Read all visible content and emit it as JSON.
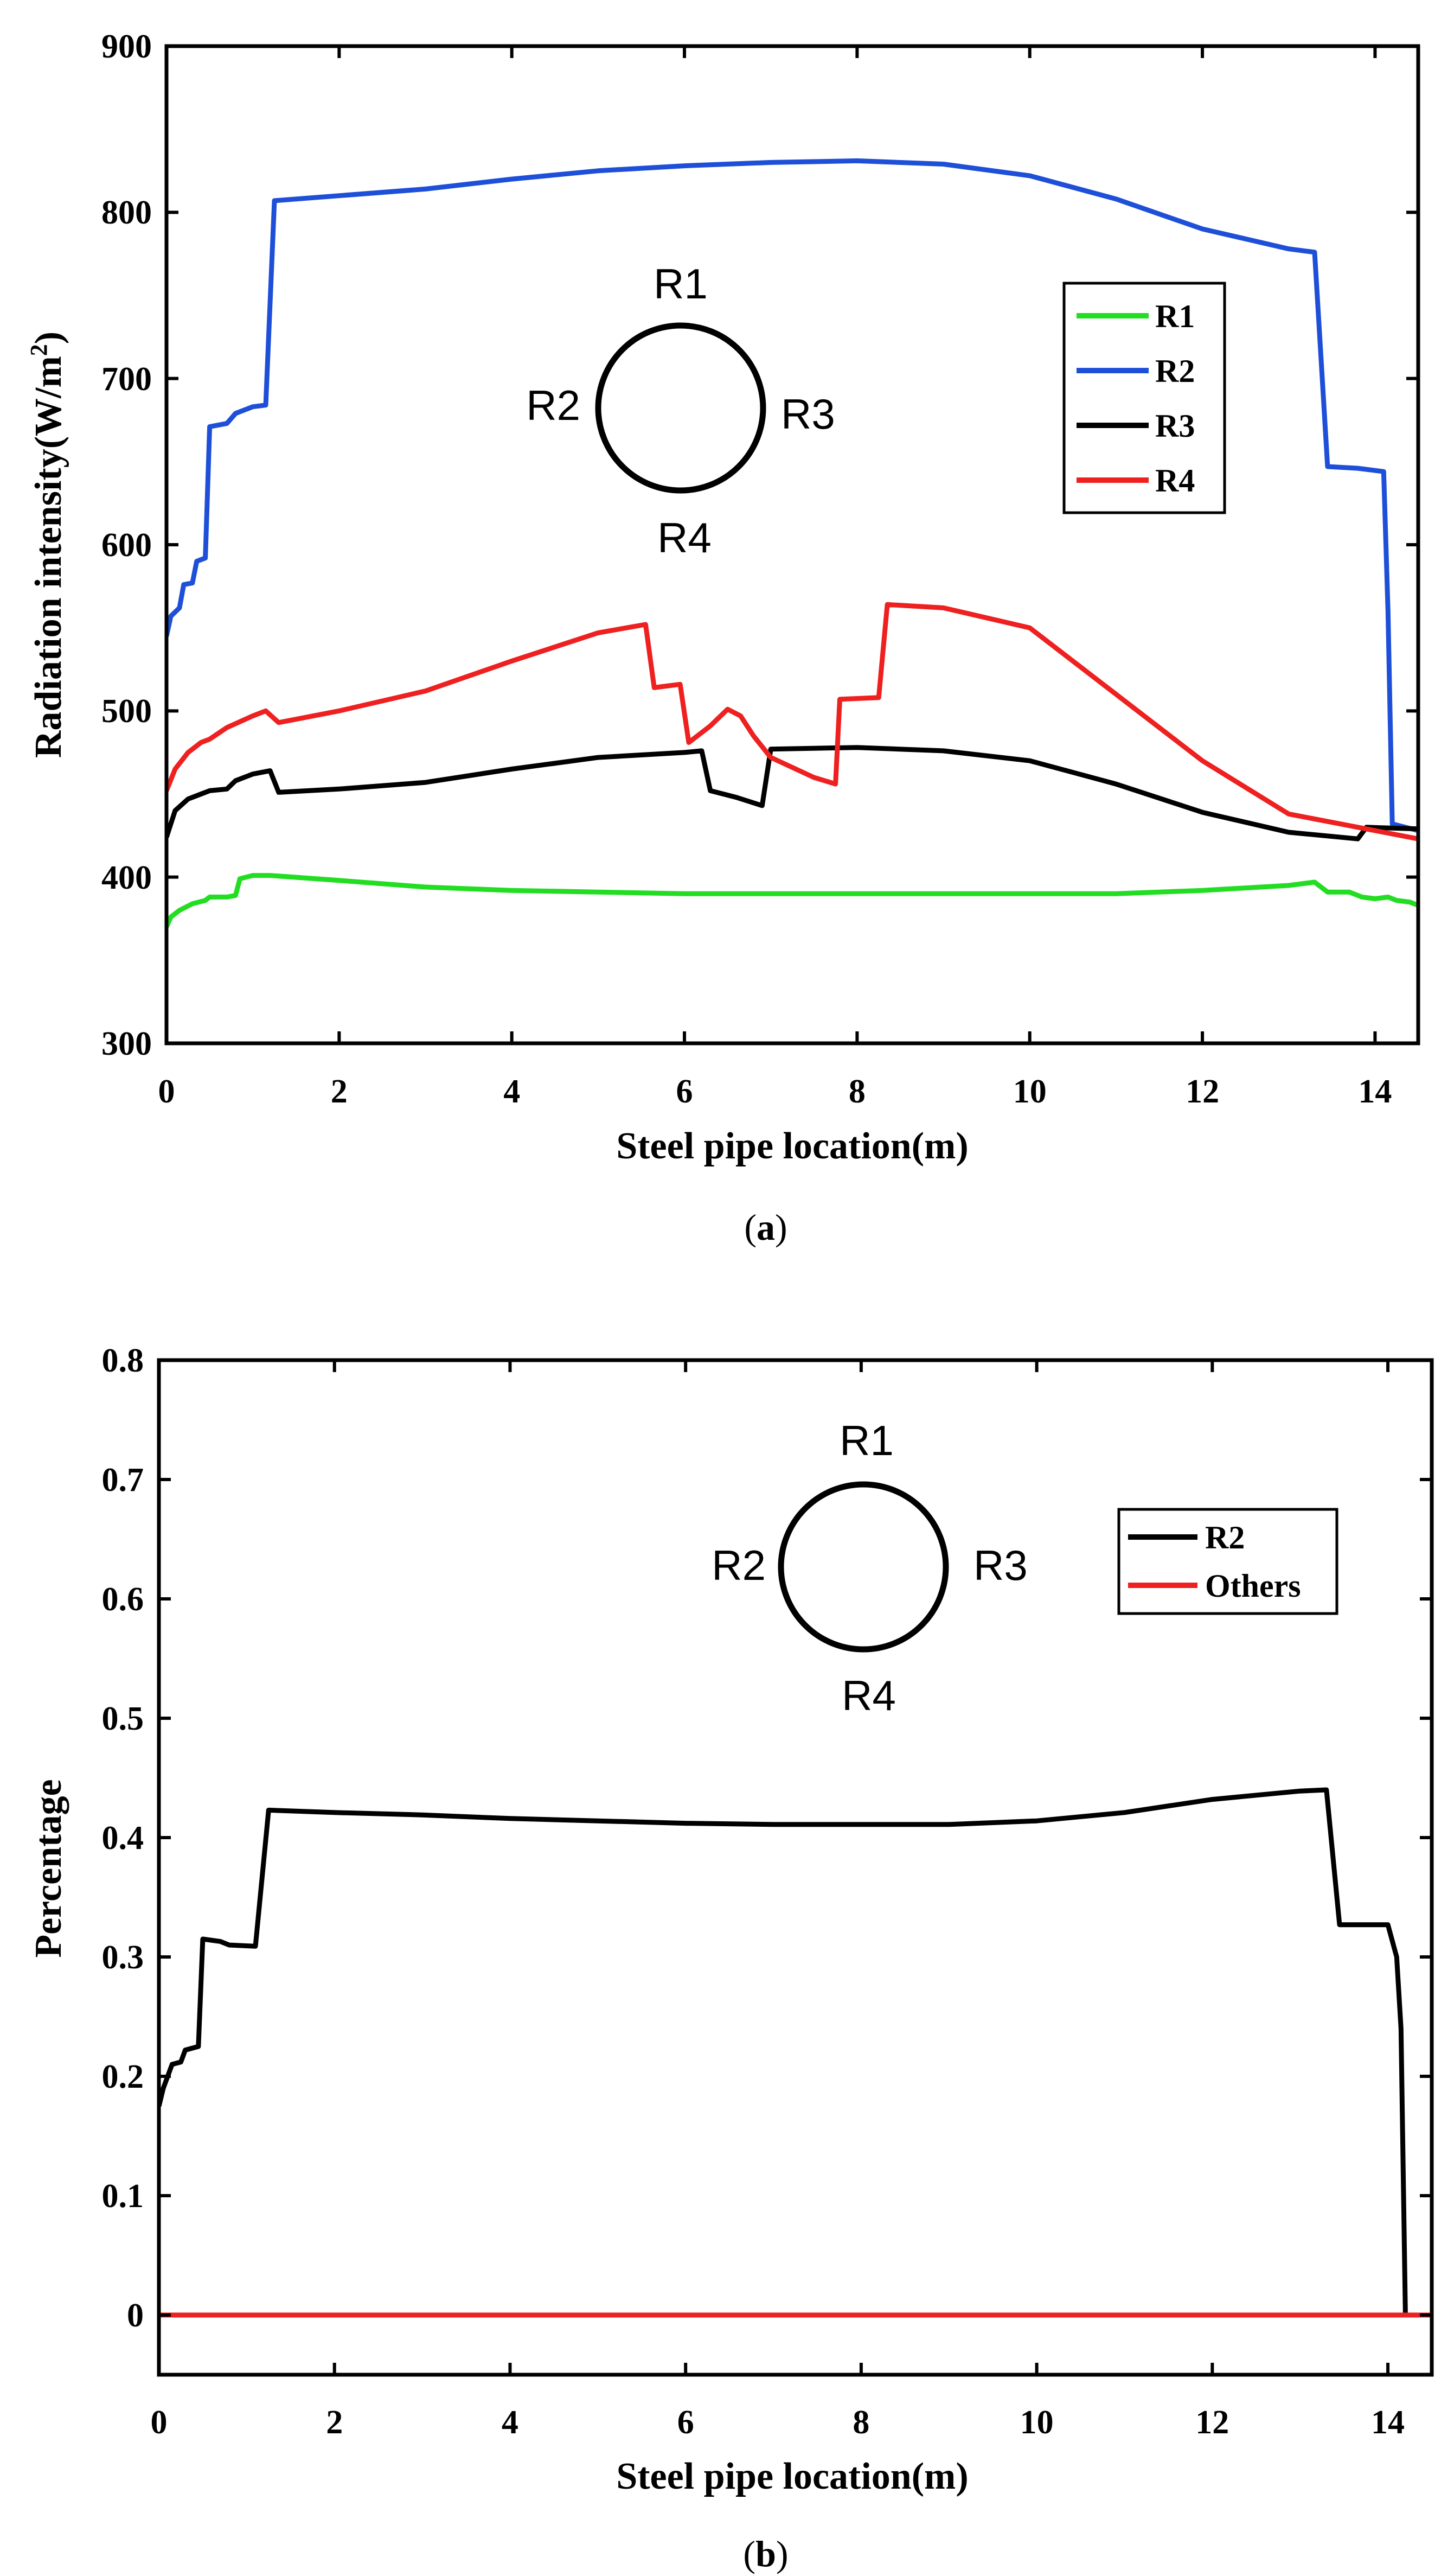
{
  "chart_data": [
    {
      "panel": "a",
      "caption_open": "(",
      "caption_letter": "a",
      "caption_close": ")",
      "type": "line",
      "title": "",
      "xlabel": "Steel pipe location(m)",
      "ylabel_main": "Radiation intensity(W/m",
      "ylabel_sup": "2",
      "ylabel_close": ")",
      "xlim": [
        0,
        14.5
      ],
      "ylim": [
        300,
        900
      ],
      "xticks": [
        "0",
        "2",
        "4",
        "6",
        "8",
        "10",
        "12",
        "14"
      ],
      "yticks": [
        "300",
        "400",
        "500",
        "600",
        "700",
        "800",
        "900"
      ],
      "legend_position": "upper-right",
      "inset_labels": {
        "top": "R1",
        "left": "R2",
        "right": "R3",
        "bottom": "R4"
      },
      "series": [
        {
          "name": "R1",
          "color": "#22dd22",
          "points": [
            [
              0,
              370
            ],
            [
              0.05,
              376
            ],
            [
              0.15,
              380
            ],
            [
              0.3,
              384
            ],
            [
              0.45,
              386
            ],
            [
              0.5,
              388
            ],
            [
              0.7,
              388
            ],
            [
              0.8,
              389
            ],
            [
              0.85,
              399
            ],
            [
              1.0,
              401
            ],
            [
              1.2,
              401
            ],
            [
              2,
              398
            ],
            [
              3,
              394
            ],
            [
              4,
              392
            ],
            [
              5,
              391
            ],
            [
              6,
              390
            ],
            [
              7,
              390
            ],
            [
              8,
              390
            ],
            [
              9,
              390
            ],
            [
              10,
              390
            ],
            [
              11,
              390
            ],
            [
              12,
              392
            ],
            [
              13,
              395
            ],
            [
              13.3,
              397
            ],
            [
              13.45,
              391
            ],
            [
              13.7,
              391
            ],
            [
              13.85,
              388
            ],
            [
              14.0,
              387
            ],
            [
              14.15,
              388
            ],
            [
              14.25,
              386
            ],
            [
              14.4,
              385
            ],
            [
              14.5,
              383
            ]
          ]
        },
        {
          "name": "R2",
          "color": "#1e4fd8",
          "points": [
            [
              0,
              545
            ],
            [
              0.05,
              557
            ],
            [
              0.15,
              562
            ],
            [
              0.2,
              576
            ],
            [
              0.3,
              577
            ],
            [
              0.35,
              590
            ],
            [
              0.45,
              592
            ],
            [
              0.5,
              671
            ],
            [
              0.7,
              673
            ],
            [
              0.8,
              679
            ],
            [
              1.0,
              683
            ],
            [
              1.15,
              684
            ],
            [
              1.25,
              807
            ],
            [
              2,
              810
            ],
            [
              3,
              814
            ],
            [
              4,
              820
            ],
            [
              5,
              825
            ],
            [
              6,
              828
            ],
            [
              7,
              830
            ],
            [
              8,
              831
            ],
            [
              9,
              829
            ],
            [
              10,
              822
            ],
            [
              11,
              808
            ],
            [
              12,
              790
            ],
            [
              13,
              778
            ],
            [
              13.3,
              776
            ],
            [
              13.45,
              647
            ],
            [
              13.8,
              646
            ],
            [
              14.1,
              644
            ],
            [
              14.15,
              560
            ],
            [
              14.2,
              432
            ],
            [
              14.5,
              428
            ]
          ]
        },
        {
          "name": "R3",
          "color": "#000000",
          "points": [
            [
              0,
              424
            ],
            [
              0.1,
              440
            ],
            [
              0.25,
              447
            ],
            [
              0.4,
              450
            ],
            [
              0.5,
              452
            ],
            [
              0.7,
              453
            ],
            [
              0.8,
              458
            ],
            [
              1.0,
              462
            ],
            [
              1.2,
              464
            ],
            [
              1.3,
              451
            ],
            [
              2,
              453
            ],
            [
              3,
              457
            ],
            [
              4,
              465
            ],
            [
              5,
              472
            ],
            [
              6,
              475
            ],
            [
              6.2,
              476
            ],
            [
              6.3,
              452
            ],
            [
              6.6,
              448
            ],
            [
              6.9,
              443
            ],
            [
              7.0,
              477
            ],
            [
              8,
              478
            ],
            [
              9,
              476
            ],
            [
              10,
              470
            ],
            [
              11,
              456
            ],
            [
              12,
              439
            ],
            [
              13,
              427
            ],
            [
              13.8,
              423
            ],
            [
              13.9,
              430
            ],
            [
              14.5,
              429
            ]
          ]
        },
        {
          "name": "R4",
          "color": "#ee2020",
          "points": [
            [
              0,
              452
            ],
            [
              0.1,
              465
            ],
            [
              0.25,
              475
            ],
            [
              0.4,
              481
            ],
            [
              0.5,
              483
            ],
            [
              0.7,
              490
            ],
            [
              1.0,
              497
            ],
            [
              1.15,
              500
            ],
            [
              1.3,
              493
            ],
            [
              2,
              500
            ],
            [
              3,
              512
            ],
            [
              4,
              530
            ],
            [
              5,
              547
            ],
            [
              5.55,
              552
            ],
            [
              5.65,
              514
            ],
            [
              5.95,
              516
            ],
            [
              6.05,
              481
            ],
            [
              6.3,
              491
            ],
            [
              6.5,
              501
            ],
            [
              6.65,
              497
            ],
            [
              6.8,
              485
            ],
            [
              7.0,
              472
            ],
            [
              7.5,
              460
            ],
            [
              7.75,
              456
            ],
            [
              7.8,
              507
            ],
            [
              8.25,
              508
            ],
            [
              8.35,
              564
            ],
            [
              9,
              562
            ],
            [
              10,
              550
            ],
            [
              11,
              510
            ],
            [
              12,
              470
            ],
            [
              13,
              438
            ],
            [
              14,
              428
            ],
            [
              14.5,
              423
            ]
          ]
        }
      ]
    },
    {
      "panel": "b",
      "caption_open": "(",
      "caption_letter": "b",
      "caption_close": ")",
      "type": "line",
      "title": "",
      "xlabel": "Steel pipe location(m)",
      "ylabel_main": "Percentage",
      "ylabel_sup": "",
      "ylabel_close": "",
      "xlim": [
        0,
        14.5
      ],
      "ylim": [
        -0.05,
        0.8
      ],
      "xticks": [
        "0",
        "2",
        "4",
        "6",
        "8",
        "10",
        "12",
        "14"
      ],
      "yticks": [
        "0",
        "0.1",
        "0.2",
        "0.3",
        "0.4",
        "0.5",
        "0.6",
        "0.7",
        "0.8"
      ],
      "legend_position": "upper-right",
      "inset_labels": {
        "top": "R1",
        "left": "R2",
        "right": "R3",
        "bottom": "R4"
      },
      "series": [
        {
          "name": "R2",
          "color": "#000000",
          "points": [
            [
              0,
              0.175
            ],
            [
              0.05,
              0.19
            ],
            [
              0.1,
              0.2
            ],
            [
              0.15,
              0.21
            ],
            [
              0.25,
              0.212
            ],
            [
              0.3,
              0.222
            ],
            [
              0.45,
              0.225
            ],
            [
              0.5,
              0.315
            ],
            [
              0.7,
              0.313
            ],
            [
              0.8,
              0.31
            ],
            [
              1.1,
              0.309
            ],
            [
              1.25,
              0.423
            ],
            [
              2,
              0.421
            ],
            [
              3,
              0.419
            ],
            [
              4,
              0.416
            ],
            [
              5,
              0.414
            ],
            [
              6,
              0.412
            ],
            [
              7,
              0.411
            ],
            [
              8,
              0.411
            ],
            [
              9,
              0.411
            ],
            [
              10,
              0.414
            ],
            [
              11,
              0.421
            ],
            [
              12,
              0.432
            ],
            [
              13,
              0.439
            ],
            [
              13.3,
              0.44
            ],
            [
              13.45,
              0.327
            ],
            [
              14.0,
              0.327
            ],
            [
              14.1,
              0.3
            ],
            [
              14.15,
              0.24
            ],
            [
              14.2,
              0.0
            ]
          ]
        },
        {
          "name": "Others",
          "color": "#ee2020",
          "points": [
            [
              0,
              0
            ],
            [
              14.5,
              0
            ]
          ]
        }
      ]
    }
  ]
}
